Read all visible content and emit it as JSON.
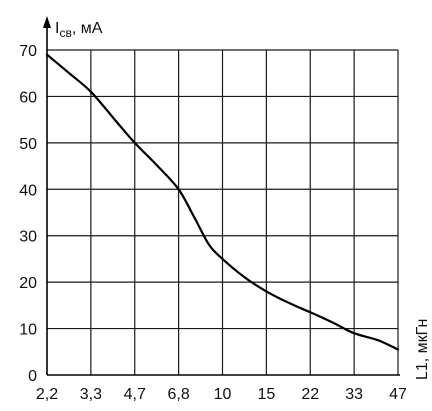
{
  "chart_data": {
    "type": "line",
    "xlabel": "L1, мкГн",
    "ylabel": {
      "main": "I",
      "sub": "св",
      "unit": ", мА"
    },
    "x_categories": [
      "2,2",
      "3,3",
      "4,7",
      "6,8",
      "10",
      "15",
      "22",
      "33",
      "47"
    ],
    "y_ticks": [
      "0",
      "10",
      "20",
      "30",
      "40",
      "50",
      "60",
      "70"
    ],
    "ylim": [
      0,
      70
    ],
    "grid": true,
    "series": [
      {
        "x": [
          2.2,
          2.7,
          3.3,
          4.0,
          4.7,
          5.7,
          6.8,
          7.8,
          8.9,
          10,
          12.3,
          15,
          18.3,
          22,
          27.3,
          33,
          40,
          47
        ],
        "y": [
          69,
          65,
          61,
          55,
          50,
          45,
          40,
          34,
          28,
          25,
          21,
          18,
          15.5,
          13.5,
          11.2,
          9,
          7.5,
          5.5
        ]
      }
    ]
  }
}
